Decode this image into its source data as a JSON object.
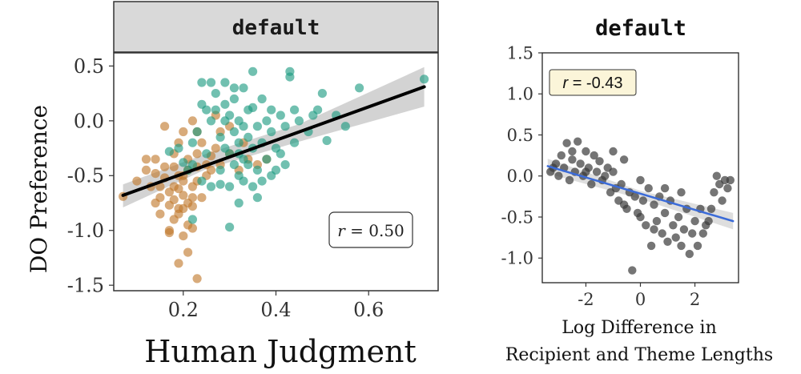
{
  "chart_data": [
    {
      "type": "scatter",
      "panel_title": "default",
      "title": "",
      "xlabel": "Human Judgment",
      "ylabel": "DO Preference",
      "xlim": [
        0.05,
        0.75
      ],
      "ylim": [
        -1.55,
        0.62
      ],
      "xticks": [
        "0.2",
        "0.4",
        "0.6"
      ],
      "xtick_values": [
        0.2,
        0.4,
        0.6
      ],
      "yticks": [
        "0.5",
        "0.0",
        "-0.5",
        "-1.0",
        "-1.5"
      ],
      "ytick_values": [
        0.5,
        0.0,
        -0.5,
        -1.0,
        -1.5
      ],
      "annotation": {
        "r_symbol": "r",
        "value": " = 0.50"
      },
      "colors": {
        "group_a": "#c0782a",
        "group_b": "#1a9a80",
        "fit": "#000000",
        "band": "#c8c8c8",
        "strip": "#d9d9d9"
      },
      "grid": false,
      "fit_line": {
        "x": [
          0.07,
          0.72
        ],
        "y": [
          -0.68,
          0.31
        ]
      },
      "band": {
        "x": [
          0.07,
          0.25,
          0.45,
          0.72
        ],
        "upper": [
          -0.58,
          -0.3,
          -0.03,
          0.49
        ],
        "lower": [
          -0.79,
          -0.44,
          -0.19,
          0.13
        ]
      },
      "series": [
        {
          "points": [
            [
              0.07,
              -0.69
            ],
            [
              0.1,
              -0.55
            ],
            [
              0.12,
              -0.35
            ],
            [
              0.12,
              -0.45
            ],
            [
              0.13,
              -0.6
            ],
            [
              0.14,
              -0.35
            ],
            [
              0.14,
              -0.48
            ],
            [
              0.15,
              -0.6
            ],
            [
              0.15,
              -0.7
            ],
            [
              0.15,
              -0.85
            ],
            [
              0.16,
              -0.05
            ],
            [
              0.16,
              -0.42
            ],
            [
              0.16,
              -0.52
            ],
            [
              0.17,
              -1.0
            ],
            [
              0.17,
              -1.02
            ],
            [
              0.17,
              -0.65
            ],
            [
              0.17,
              -0.77
            ],
            [
              0.18,
              -0.42
            ],
            [
              0.18,
              -0.3
            ],
            [
              0.18,
              -0.72
            ],
            [
              0.18,
              -0.9
            ],
            [
              0.19,
              -0.5
            ],
            [
              0.19,
              -0.62
            ],
            [
              0.19,
              -0.85
            ],
            [
              0.19,
              -1.3
            ],
            [
              0.19,
              -0.2
            ],
            [
              0.2,
              -0.1
            ],
            [
              0.2,
              -0.55
            ],
            [
              0.2,
              -0.68
            ],
            [
              0.2,
              -0.8
            ],
            [
              0.2,
              -1.05
            ],
            [
              0.21,
              -0.35
            ],
            [
              0.21,
              -0.45
            ],
            [
              0.21,
              -0.75
            ],
            [
              0.21,
              -0.95
            ],
            [
              0.21,
              -1.2
            ],
            [
              0.22,
              0.0
            ],
            [
              0.22,
              -0.6
            ],
            [
              0.22,
              -0.78
            ],
            [
              0.22,
              -0.98
            ],
            [
              0.23,
              -0.1
            ],
            [
              0.23,
              -0.3
            ],
            [
              0.23,
              -0.42
            ],
            [
              0.23,
              -0.55
            ],
            [
              0.23,
              -1.44
            ],
            [
              0.24,
              -0.2
            ],
            [
              0.24,
              -0.7
            ],
            [
              0.25,
              -0.5
            ],
            [
              0.26,
              -0.32
            ],
            [
              0.26,
              -0.45
            ],
            [
              0.27,
              0.05
            ],
            [
              0.27,
              -0.25
            ],
            [
              0.28,
              -0.1
            ],
            [
              0.28,
              -0.4
            ],
            [
              0.3,
              -0.05
            ],
            [
              0.3,
              -0.3
            ],
            [
              0.32,
              -0.45
            ],
            [
              0.33,
              -0.2
            ],
            [
              0.34,
              -0.35
            ],
            [
              0.36,
              -0.4
            ],
            [
              0.38,
              -0.35
            ],
            [
              0.19,
              -0.8
            ],
            [
              0.2,
              -0.5
            ],
            [
              0.22,
              -0.7
            ],
            [
              0.18,
              -0.6
            ],
            [
              0.14,
              -0.75
            ],
            [
              0.25,
              -0.4
            ]
          ]
        },
        {
          "points": [
            [
              0.17,
              -0.28
            ],
            [
              0.19,
              -0.25
            ],
            [
              0.2,
              -0.38
            ],
            [
              0.21,
              -0.45
            ],
            [
              0.22,
              -0.2
            ],
            [
              0.22,
              -0.9
            ],
            [
              0.22,
              -0.4
            ],
            [
              0.23,
              -0.1
            ],
            [
              0.24,
              0.15
            ],
            [
              0.24,
              -0.55
            ],
            [
              0.25,
              0.1
            ],
            [
              0.25,
              -0.3
            ],
            [
              0.26,
              0.0
            ],
            [
              0.26,
              -0.6
            ],
            [
              0.27,
              0.25
            ],
            [
              0.27,
              0.1
            ],
            [
              0.28,
              -0.15
            ],
            [
              0.28,
              -0.45
            ],
            [
              0.29,
              0.15
            ],
            [
              0.29,
              0.0
            ],
            [
              0.29,
              -0.25
            ],
            [
              0.3,
              0.05
            ],
            [
              0.3,
              -0.3
            ],
            [
              0.3,
              -0.6
            ],
            [
              0.3,
              -0.97
            ],
            [
              0.31,
              0.2
            ],
            [
              0.31,
              -0.1
            ],
            [
              0.31,
              -0.4
            ],
            [
              0.32,
              0.0
            ],
            [
              0.32,
              -0.2
            ],
            [
              0.32,
              -0.5
            ],
            [
              0.32,
              -0.75
            ],
            [
              0.33,
              0.3
            ],
            [
              0.33,
              -0.05
            ],
            [
              0.33,
              -0.35
            ],
            [
              0.33,
              -0.55
            ],
            [
              0.34,
              0.1
            ],
            [
              0.34,
              -0.15
            ],
            [
              0.34,
              -0.4
            ],
            [
              0.35,
              0.45
            ],
            [
              0.35,
              0.12
            ],
            [
              0.35,
              -0.25
            ],
            [
              0.35,
              -0.6
            ],
            [
              0.36,
              -0.05
            ],
            [
              0.36,
              -0.45
            ],
            [
              0.37,
              0.2
            ],
            [
              0.37,
              -0.2
            ],
            [
              0.37,
              -0.55
            ],
            [
              0.38,
              0.0
            ],
            [
              0.38,
              -0.35
            ],
            [
              0.39,
              0.1
            ],
            [
              0.39,
              -0.1
            ],
            [
              0.39,
              -0.5
            ],
            [
              0.4,
              -0.25
            ],
            [
              0.4,
              -0.45
            ],
            [
              0.41,
              0.05
            ],
            [
              0.41,
              -0.3
            ],
            [
              0.42,
              -0.05
            ],
            [
              0.42,
              -0.4
            ],
            [
              0.43,
              0.45
            ],
            [
              0.43,
              0.4
            ],
            [
              0.44,
              0.1
            ],
            [
              0.44,
              -0.2
            ],
            [
              0.45,
              0.0
            ],
            [
              0.47,
              -0.1
            ],
            [
              0.48,
              0.05
            ],
            [
              0.49,
              0.1
            ],
            [
              0.5,
              0.25
            ],
            [
              0.51,
              -0.18
            ],
            [
              0.53,
              0.05
            ],
            [
              0.55,
              -0.05
            ],
            [
              0.58,
              0.3
            ],
            [
              0.72,
              0.38
            ],
            [
              0.26,
              0.35
            ],
            [
              0.29,
              0.35
            ],
            [
              0.24,
              0.35
            ],
            [
              0.31,
              0.3
            ],
            [
              0.36,
              -0.7
            ],
            [
              0.28,
              -0.58
            ],
            [
              0.32,
              -0.3
            ]
          ]
        }
      ]
    },
    {
      "type": "scatter",
      "panel_title": "default",
      "title": "",
      "xlabel": "Log Difference in Recipient and Theme Lengths",
      "xlabel_lines": [
        "Log Difference in",
        "Recipient and Theme Lengths"
      ],
      "ylabel": "",
      "xlim": [
        -3.6,
        3.6
      ],
      "ylim": [
        -1.3,
        1.5
      ],
      "xticks": [
        "-2",
        "0",
        "2"
      ],
      "xtick_values": [
        -2,
        0,
        2
      ],
      "yticks": [
        "1.5",
        "1.0",
        "0.5",
        "0.0",
        "-0.5",
        "-1.0"
      ],
      "ytick_values": [
        1.5,
        1.0,
        0.5,
        0.0,
        -0.5,
        -1.0
      ],
      "annotation": {
        "r_symbol": "r",
        "value": " = -0.43"
      },
      "colors": {
        "points": "#3a3a3a",
        "fit": "#3b6bd8",
        "band": "#d6d6d6",
        "annotation_bg": "#fbf5d9"
      },
      "grid": false,
      "fit_line": {
        "x": [
          -3.4,
          3.4
        ],
        "y": [
          0.12,
          -0.55
        ]
      },
      "band": {
        "x": [
          -3.4,
          0,
          3.4
        ],
        "upper": [
          0.21,
          -0.18,
          -0.45
        ],
        "lower": [
          0.03,
          -0.28,
          -0.65
        ]
      },
      "series": [
        {
          "points": [
            [
              -3.3,
              0.05
            ],
            [
              -3.1,
              0.15
            ],
            [
              -3.0,
              0.0
            ],
            [
              -2.9,
              0.25
            ],
            [
              -2.8,
              0.1
            ],
            [
              -2.7,
              0.4
            ],
            [
              -2.6,
              -0.05
            ],
            [
              -2.5,
              0.2
            ],
            [
              -2.4,
              0.05
            ],
            [
              -2.3,
              0.42
            ],
            [
              -2.2,
              0.15
            ],
            [
              -2.1,
              0.0
            ],
            [
              -2.0,
              0.3
            ],
            [
              -1.9,
              0.1
            ],
            [
              -1.8,
              -0.1
            ],
            [
              -1.7,
              0.25
            ],
            [
              -1.6,
              0.05
            ],
            [
              -1.5,
              0.18
            ],
            [
              -1.4,
              -0.05
            ],
            [
              -1.3,
              0.0
            ],
            [
              -1.2,
              0.1
            ],
            [
              -1.1,
              -0.2
            ],
            [
              -1.0,
              0.05
            ],
            [
              -0.9,
              -0.15
            ],
            [
              -0.8,
              -0.3
            ],
            [
              -0.7,
              -0.1
            ],
            [
              -0.6,
              0.2
            ],
            [
              -0.5,
              -0.4
            ],
            [
              -0.4,
              -0.2
            ],
            [
              -0.3,
              -1.15
            ],
            [
              -0.2,
              -0.25
            ],
            [
              -0.1,
              -0.45
            ],
            [
              0.0,
              -0.05
            ],
            [
              0.1,
              -0.3
            ],
            [
              0.2,
              -0.6
            ],
            [
              0.3,
              -0.15
            ],
            [
              0.4,
              -0.85
            ],
            [
              0.5,
              -0.35
            ],
            [
              0.6,
              -0.55
            ],
            [
              0.7,
              -0.25
            ],
            [
              0.8,
              -0.7
            ],
            [
              0.9,
              -0.45
            ],
            [
              1.0,
              -0.8
            ],
            [
              1.1,
              -0.3
            ],
            [
              1.2,
              -0.6
            ],
            [
              1.3,
              -0.75
            ],
            [
              1.4,
              -0.5
            ],
            [
              1.5,
              -0.2
            ],
            [
              1.6,
              -0.65
            ],
            [
              1.7,
              -0.4
            ],
            [
              1.8,
              -0.95
            ],
            [
              1.9,
              -0.7
            ],
            [
              2.0,
              -0.55
            ],
            [
              2.1,
              -0.85
            ],
            [
              2.2,
              -0.4
            ],
            [
              2.3,
              -0.7
            ],
            [
              2.5,
              -0.55
            ],
            [
              2.6,
              -0.4
            ],
            [
              2.7,
              -0.2
            ],
            [
              2.8,
              0.0
            ],
            [
              2.9,
              -0.1
            ],
            [
              3.0,
              -0.3
            ],
            [
              3.1,
              -0.05
            ],
            [
              3.2,
              -0.15
            ],
            [
              3.3,
              -0.05
            ],
            [
              -3.2,
              0.1
            ],
            [
              -2.0,
              0.05
            ],
            [
              -0.6,
              -0.35
            ],
            [
              0.5,
              -0.65
            ],
            [
              1.5,
              -0.85
            ],
            [
              -1.0,
              0.3
            ],
            [
              0.9,
              -0.15
            ],
            [
              2.4,
              -0.6
            ],
            [
              -2.5,
              0.3
            ],
            [
              0.0,
              -0.5
            ]
          ]
        }
      ]
    }
  ]
}
